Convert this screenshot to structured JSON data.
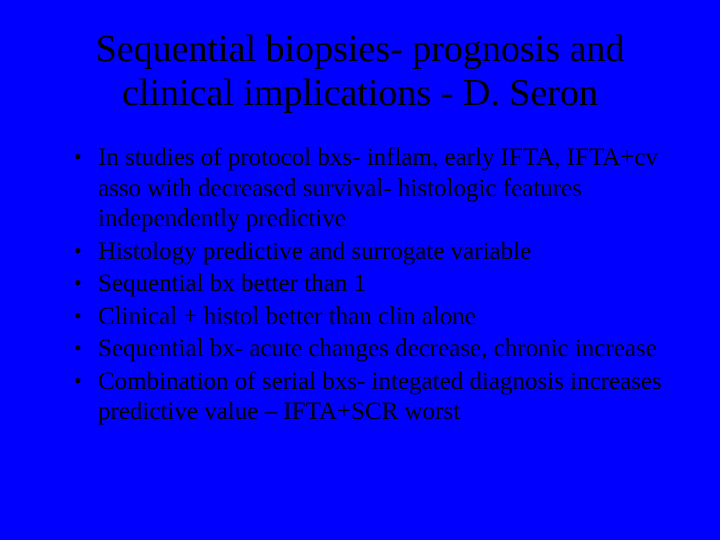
{
  "slide": {
    "background_color": "#0000ff",
    "text_color": "#000000",
    "font_family": "Times New Roman",
    "title": {
      "text": "Sequential biopsies- prognosis and clinical implications - D. Seron",
      "fontsize": 38,
      "align": "center"
    },
    "bullets": {
      "fontsize": 25,
      "marker": "•",
      "items": [
        "In studies of protocol bxs- inflam, early IFTA, IFTA+cv asso with decreased survival- histologic features independently predictive",
        "Histology predictive and surrogate variable",
        "Sequential bx better than 1",
        "Clinical + histol better than clin alone",
        "Sequential bx- acute changes decrease, chronic increase",
        "Combination of serial bxs- integated diagnosis increases predictive value – IFTA+SCR worst"
      ]
    }
  }
}
